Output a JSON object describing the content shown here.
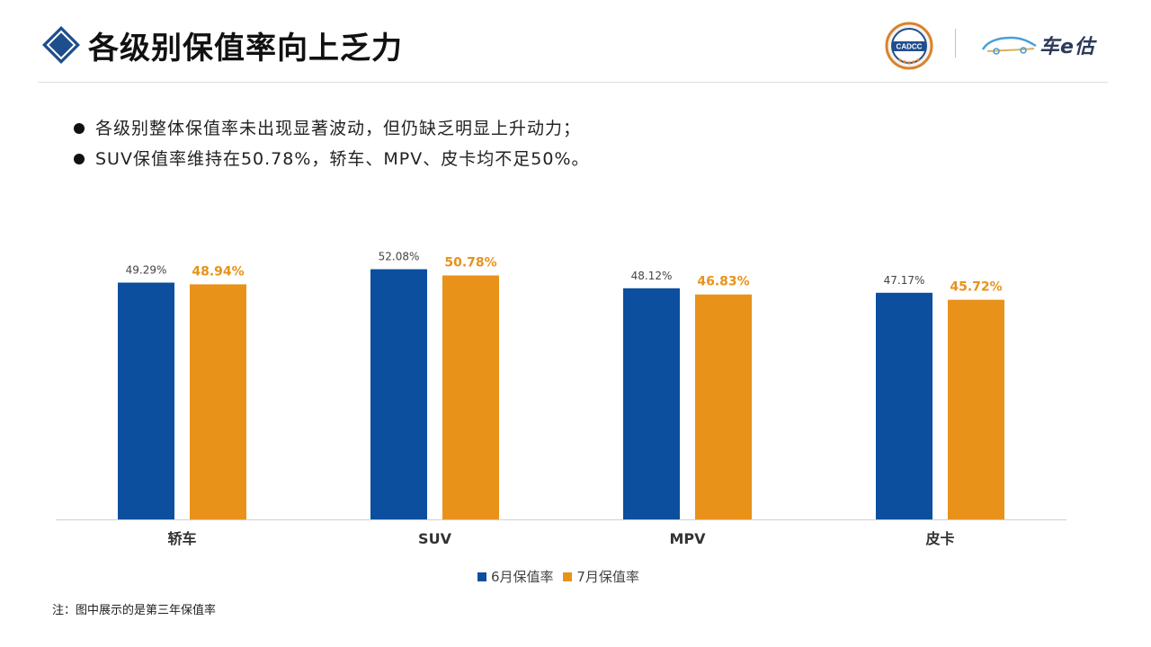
{
  "header": {
    "title": "各级别保值率向上乏力",
    "seal_text": "CADCC",
    "brand_text": "车e估",
    "colors": {
      "diamond": "#1f4e8c",
      "divider": "#b7c2cc"
    }
  },
  "bullets": [
    "各级别整体保值率未出现显著波动，但仍缺乏明显上升动力；",
    "SUV保值率维持在50.78%，轿车、MPV、皮卡均不足50%。"
  ],
  "chart_data": {
    "type": "bar",
    "categories": [
      "轿车",
      "SUV",
      "MPV",
      "皮卡"
    ],
    "series": [
      {
        "name": "6月保值率",
        "values": [
          49.29,
          52.08,
          48.12,
          47.17
        ],
        "labels": [
          "49.29%",
          "52.08%",
          "48.12%",
          "47.17%"
        ],
        "color": "#0b4f9e"
      },
      {
        "name": "7月保值率",
        "values": [
          48.94,
          50.78,
          46.83,
          45.72
        ],
        "labels": [
          "48.94%",
          "50.78%",
          "46.83%",
          "45.72%"
        ],
        "color": "#e8921a"
      }
    ],
    "ylim": [
      0,
      53.5
    ],
    "grid": false,
    "legend": "bottom-center"
  },
  "footnote": "注：图中展示的是第三年保值率"
}
